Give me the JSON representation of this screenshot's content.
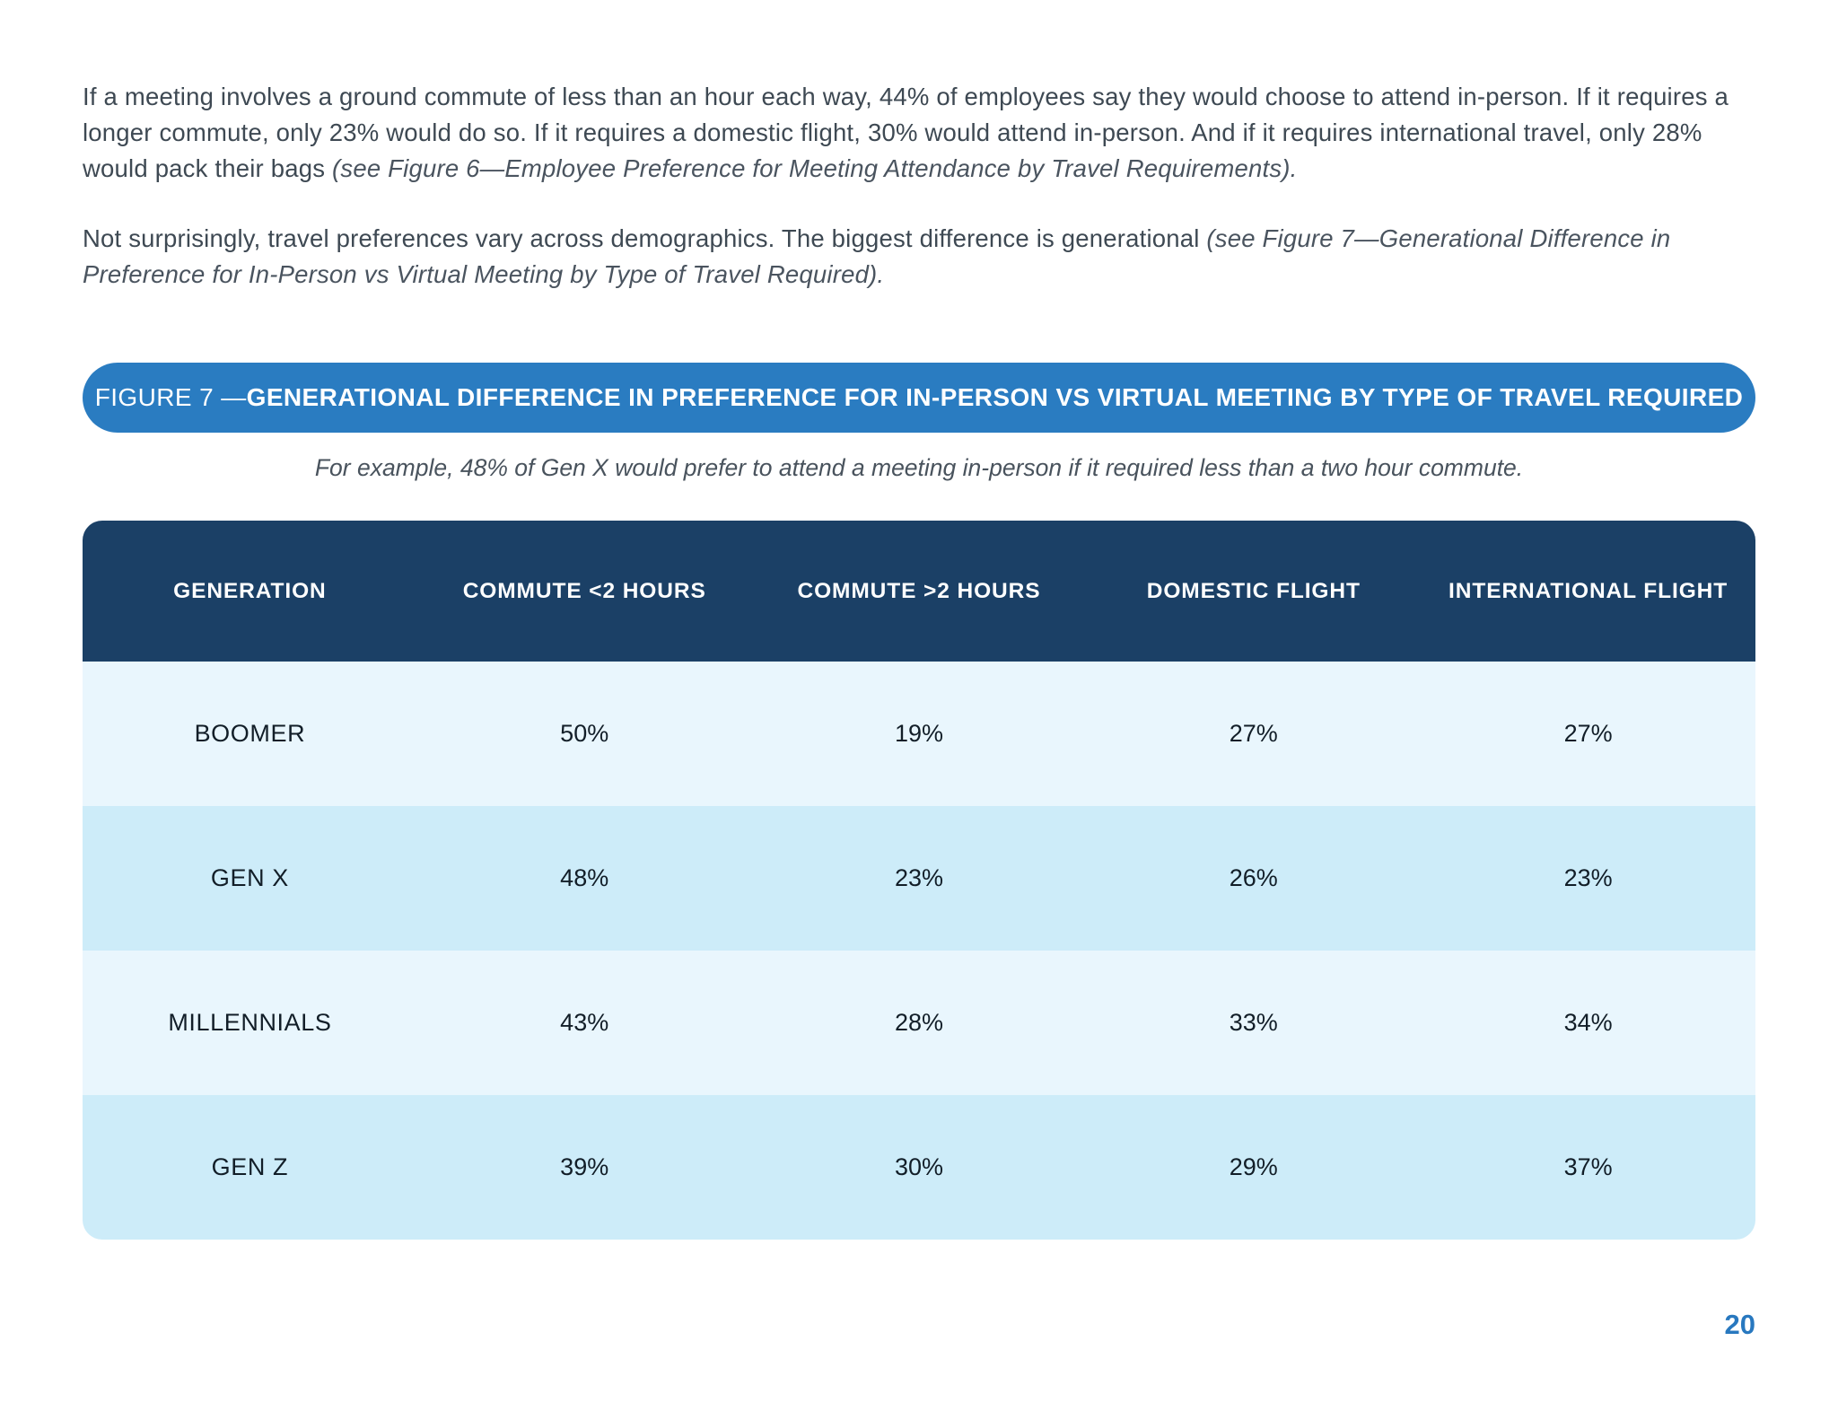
{
  "colors": {
    "banner_blue": "#2a7cc1",
    "header_navy": "#1b4066",
    "row_light": "#e9f6fd",
    "row_alt": "#cdecf9",
    "body_text": "#3e4953",
    "page_number_blue": "#2878bf"
  },
  "intro": {
    "p1_text": "If a meeting involves a ground commute of less than an hour each way, 44% of employees say they would choose to attend in-person. If it requires a longer commute, only 23% would do so. If it requires a domestic flight, 30% would attend in-person. And if it requires international travel, only 28% would pack their bags ",
    "p1_citation": "(see Figure 6—Employee Preference for Meeting Attendance by Travel Requirements).",
    "p2_text": "Not surprisingly, travel preferences vary across demographics. The biggest difference is generational ",
    "p2_citation": "(see Figure 7—Generational Difference in Preference for In-Person vs Virtual Meeting by Type of Travel Required)."
  },
  "figure": {
    "banner_prefix": "FIGURE 7 — ",
    "banner_title": "GENERATIONAL DIFFERENCE IN PREFERENCE FOR IN-PERSON VS VIRTUAL MEETING BY TYPE OF TRAVEL REQUIRED",
    "caption": "For example, 48% of Gen X would prefer to attend a meeting in-person if it required less than a two hour commute."
  },
  "table": {
    "headers": [
      "GENERATION",
      "COMMUTE <2 HOURS",
      "COMMUTE >2 HOURS",
      "DOMESTIC FLIGHT",
      "INTERNATIONAL FLIGHT"
    ],
    "rows": [
      {
        "generation": "BOOMER",
        "values": [
          "50%",
          "19%",
          "27%",
          "27%"
        ]
      },
      {
        "generation": "GEN X",
        "values": [
          "48%",
          "23%",
          "26%",
          "23%"
        ]
      },
      {
        "generation": "MILLENNIALS",
        "values": [
          "43%",
          "28%",
          "33%",
          "34%"
        ]
      },
      {
        "generation": "GEN Z",
        "values": [
          "39%",
          "30%",
          "29%",
          "37%"
        ]
      }
    ]
  },
  "chart_data": {
    "type": "table",
    "title": "FIGURE 7 — GENERATIONAL DIFFERENCE IN PREFERENCE FOR IN-PERSON VS VIRTUAL MEETING BY TYPE OF TRAVEL REQUIRED",
    "subtitle": "For example, 48% of Gen X would prefer to attend a meeting in-person if it required less than a two hour commute.",
    "columns": [
      "GENERATION",
      "COMMUTE <2 HOURS",
      "COMMUTE >2 HOURS",
      "DOMESTIC FLIGHT",
      "INTERNATIONAL FLIGHT"
    ],
    "rows": [
      [
        "BOOMER",
        "50%",
        "19%",
        "27%",
        "27%"
      ],
      [
        "GEN X",
        "48%",
        "23%",
        "26%",
        "23%"
      ],
      [
        "MILLENNIALS",
        "43%",
        "28%",
        "33%",
        "34%"
      ],
      [
        "GEN Z",
        "39%",
        "30%",
        "29%",
        "37%"
      ]
    ]
  },
  "footer": {
    "page_number": "20"
  }
}
